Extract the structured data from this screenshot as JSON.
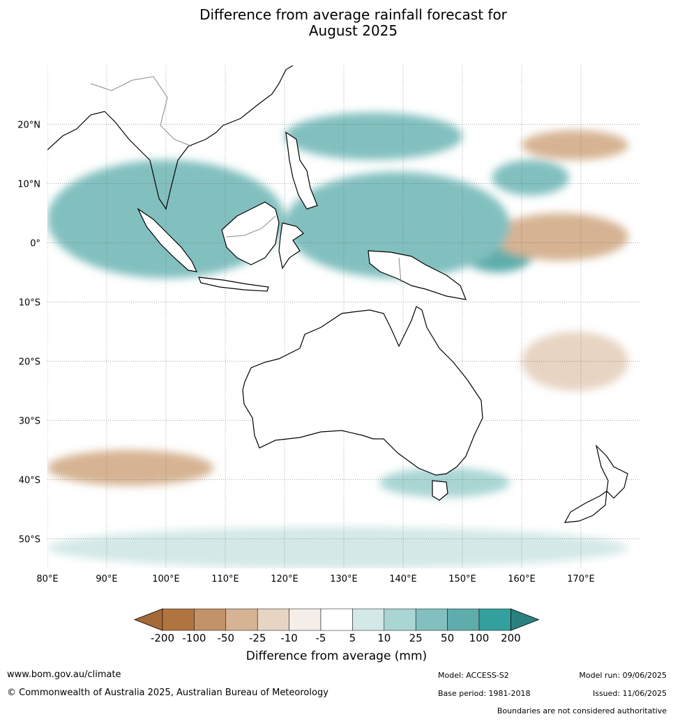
{
  "title_line1": "Difference from average rainfall forecast for",
  "title_line2": "August 2025",
  "lat_labels": [
    {
      "lat": 20,
      "text": "20°N"
    },
    {
      "lat": 10,
      "text": "10°N"
    },
    {
      "lat": 0,
      "text": "0°"
    },
    {
      "lat": -10,
      "text": "10°S"
    },
    {
      "lat": -20,
      "text": "20°S"
    },
    {
      "lat": -30,
      "text": "30°S"
    },
    {
      "lat": -40,
      "text": "40°S"
    },
    {
      "lat": -50,
      "text": "50°S"
    }
  ],
  "lon_labels": [
    {
      "lon": 80,
      "text": "80°E"
    },
    {
      "lon": 90,
      "text": "90°E"
    },
    {
      "lon": 100,
      "text": "100°E"
    },
    {
      "lon": 110,
      "text": "110°E"
    },
    {
      "lon": 120,
      "text": "120°E"
    },
    {
      "lon": 130,
      "text": "130°E"
    },
    {
      "lon": 140,
      "text": "140°E"
    },
    {
      "lon": 150,
      "text": "150°E"
    },
    {
      "lon": 160,
      "text": "160°E"
    },
    {
      "lon": 170,
      "text": "170°E"
    }
  ],
  "colorbar": {
    "title": "Difference from average (mm)",
    "ticks": [
      "-200",
      "-100",
      "-50",
      "-25",
      "-10",
      "-5",
      "5",
      "10",
      "25",
      "50",
      "100",
      "200"
    ],
    "colors": [
      "#a66a38",
      "#b07440",
      "#c29268",
      "#d6b393",
      "#e7d4c3",
      "#f5ede7",
      "#ffffff",
      "#d3e9e7",
      "#a9d5d3",
      "#82c0bf",
      "#5eadac",
      "#33a09d",
      "#2a8280"
    ]
  },
  "regions": [
    {
      "level": 1,
      "lon": [
        100,
        113
      ],
      "lat": [
        -2,
        6
      ],
      "color": "#33a09d"
    },
    {
      "level": 2,
      "lon": [
        96,
        117
      ],
      "lat": [
        -4,
        8
      ],
      "color": "#5eadac"
    },
    {
      "level": 2,
      "lon": [
        150,
        162
      ],
      "lat": [
        -5,
        1
      ],
      "color": "#5eadac"
    },
    {
      "level": 2,
      "lon": [
        128,
        146
      ],
      "lat": [
        4,
        10
      ],
      "color": "#5eadac"
    },
    {
      "level": -2,
      "lon": [
        160,
        172
      ],
      "lat": [
        -1,
        3
      ],
      "color": "#c29268"
    },
    {
      "level": -1,
      "lon": [
        155,
        178
      ],
      "lat": [
        -3,
        5
      ],
      "color": "#d6b393"
    },
    {
      "level": -1,
      "lon": [
        160,
        178
      ],
      "lat": [
        14,
        19
      ],
      "color": "#d6b393"
    },
    {
      "level": -1,
      "lon": [
        80,
        108
      ],
      "lat": [
        -41,
        -35
      ],
      "color": "#d6b393"
    },
    {
      "level": 1,
      "lon": [
        80,
        120
      ],
      "lat": [
        -6,
        14
      ],
      "color": "#82c0bf"
    },
    {
      "level": 1,
      "lon": [
        120,
        158
      ],
      "lat": [
        -6,
        12
      ],
      "color": "#82c0bf"
    },
    {
      "level": 1,
      "lon": [
        120,
        150
      ],
      "lat": [
        14,
        22
      ],
      "color": "#82c0bf"
    },
    {
      "level": 1,
      "lon": [
        155,
        168
      ],
      "lat": [
        8,
        14
      ],
      "color": "#82c0bf"
    },
    {
      "level": -1,
      "lon": [
        136,
        158
      ],
      "lat": [
        -43,
        -38
      ],
      "color": "#a9d5d3"
    },
    {
      "level": -1,
      "lon": [
        80,
        178
      ],
      "lat": [
        -55,
        -48
      ],
      "color": "#d3e9e7"
    },
    {
      "level": -1,
      "lon": [
        160,
        178
      ],
      "lat": [
        -25,
        -15
      ],
      "color": "#e7d4c3"
    }
  ],
  "footer": {
    "url": "www.bom.gov.au/climate",
    "copyright": "© Commonwealth of Australia 2025, Australian Bureau of Meteorology",
    "model": "Model: ACCESS-S2",
    "base_period": "Base period: 1981-2018",
    "model_run": "Model run: 09/06/2025",
    "issued": "Issued: 11/06/2025",
    "disclaimer": "Boundaries are not considered authoritative"
  }
}
